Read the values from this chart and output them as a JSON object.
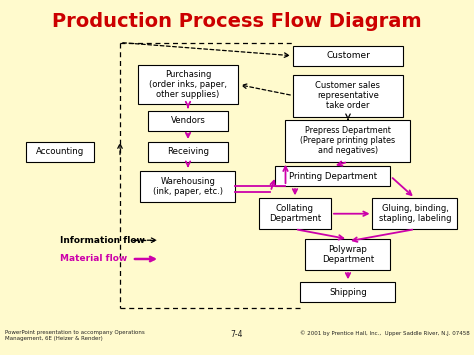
{
  "title": "Production Process Flow Diagram",
  "title_color": "#CC0000",
  "bg_outer": "#FFFACD",
  "bg_inner": "#AAAACC",
  "box_bg": "#FFFFFF",
  "box_border": "#000000",
  "material_flow_color": "#CC00AA",
  "info_flow_color": "#000000",
  "footer_left": "PowerPoint presentation to accompany Operations\nManagement, 6E (Heizer & Render)",
  "footer_center": "7-4",
  "footer_right": "© 2001 by Prentice Hall, Inc.,  Upper Saddle River, N.J. 07458"
}
